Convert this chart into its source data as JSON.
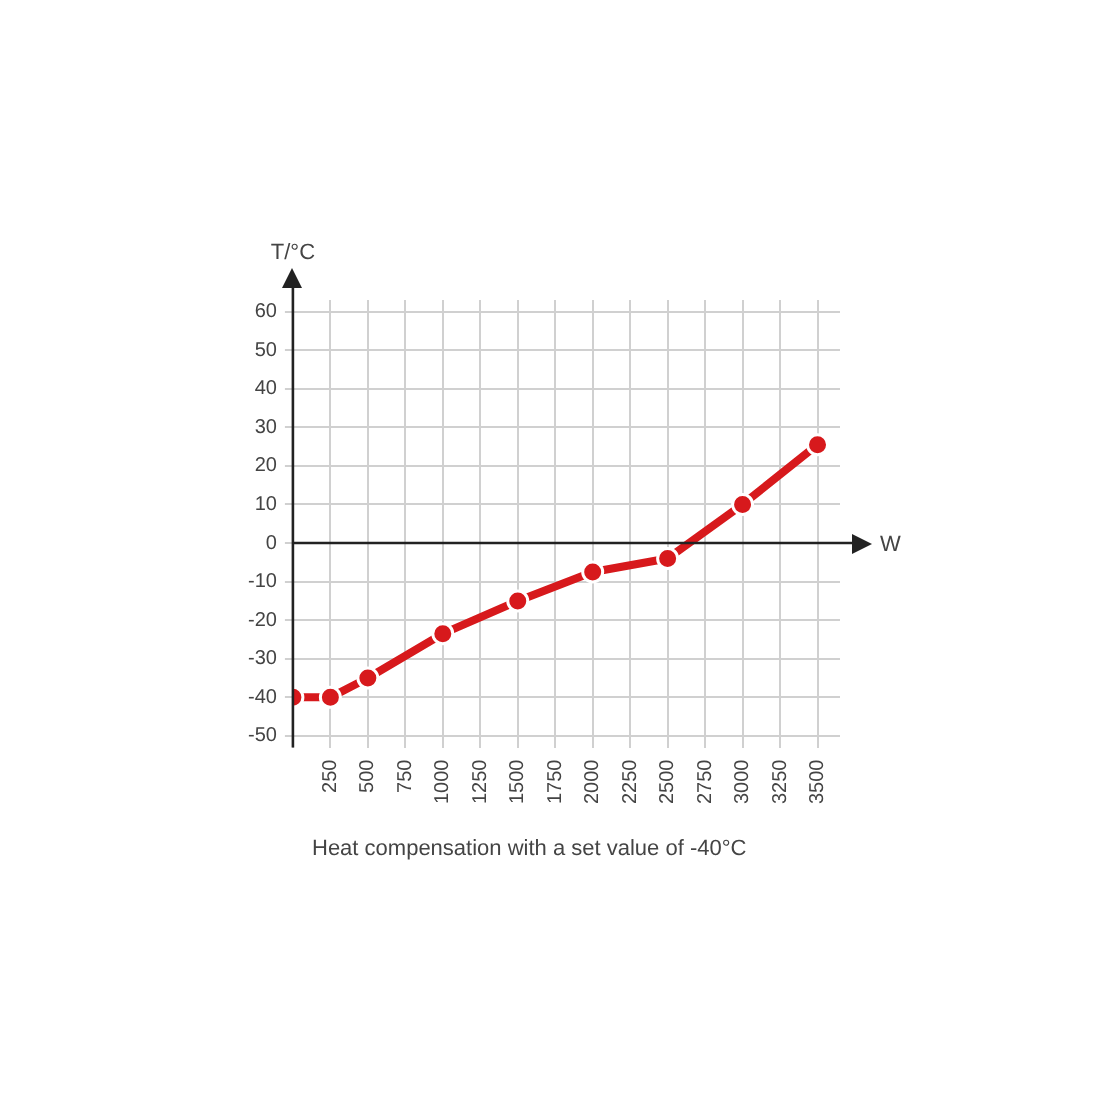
{
  "chart_data": {
    "type": "line",
    "xlabel": "W",
    "ylabel": "T/°C",
    "annotations": [
      "Heat compensation with a set value of -40°C"
    ],
    "x": [
      0,
      250,
      500,
      1000,
      1500,
      2000,
      2500,
      3000,
      3500
    ],
    "series": [
      {
        "color": "#d7191c",
        "values": [
          -40,
          -40,
          -35,
          -23.5,
          -15,
          -7.5,
          -4,
          10,
          25.5
        ]
      }
    ],
    "xlim": [
      0,
      3650
    ],
    "ylim": [
      -53,
      63
    ],
    "xticks": [
      {
        "value": 0,
        "label": null
      },
      250,
      500,
      750,
      1000,
      1250,
      1500,
      1750,
      2000,
      2250,
      2500,
      2750,
      3000,
      3250,
      3500
    ],
    "yticks": [
      -50,
      -40,
      -30,
      -20,
      -10,
      0,
      10,
      20,
      30,
      40,
      50,
      60
    ],
    "grid": true,
    "legend": false,
    "marker": "circle",
    "line_style": "solid"
  }
}
